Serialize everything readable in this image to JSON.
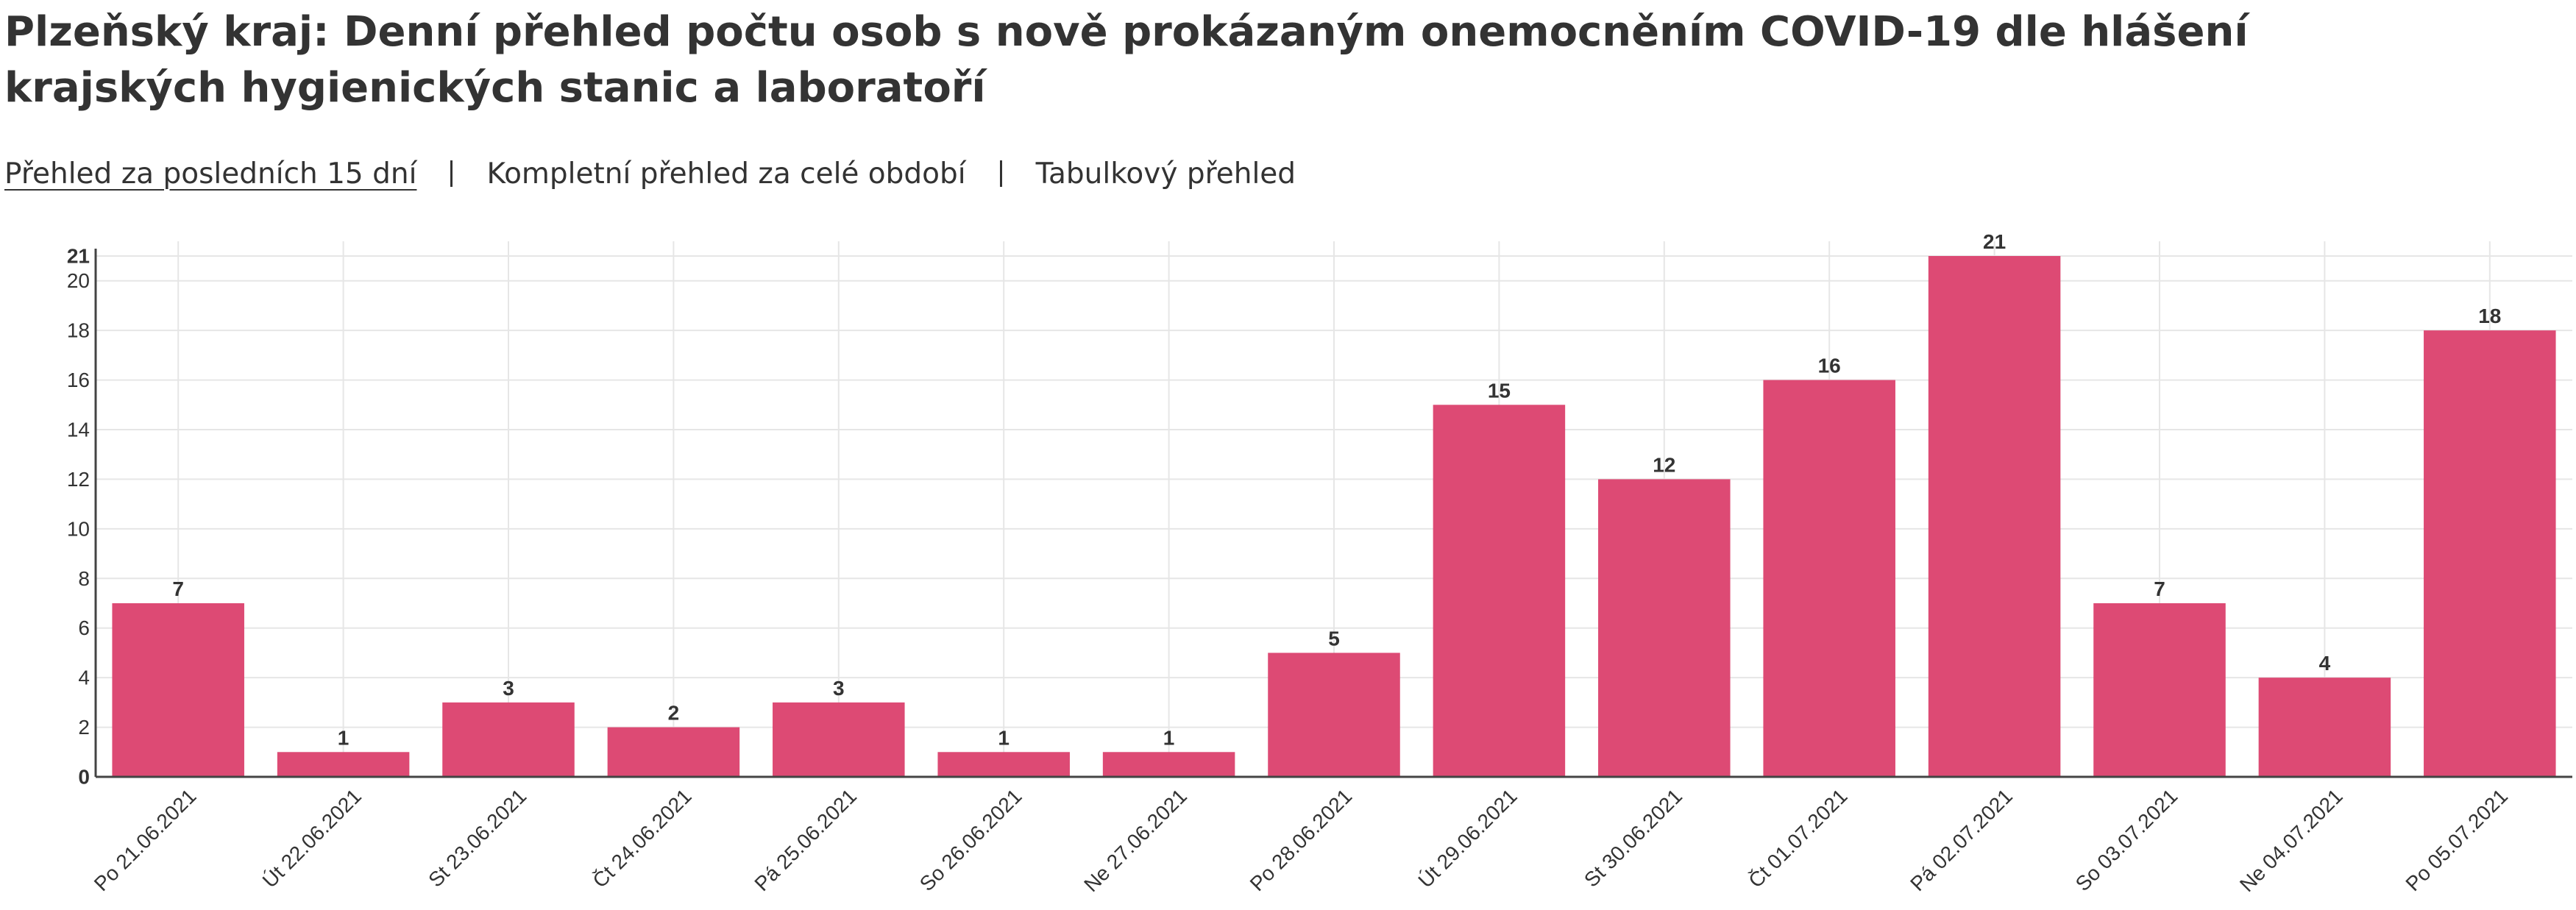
{
  "page": {
    "title": "Plzeňský kraj: Denní přehled počtu osob s nově prokázaným onemocněním COVID-19 dle hlášení krajských hygienických stanic a laboratoří"
  },
  "nav": {
    "items": [
      {
        "label": "Přehled za posledních 15 dní",
        "active": true
      },
      {
        "label": "Kompletní přehled za celé období",
        "active": false
      },
      {
        "label": "Tabulkový přehled",
        "active": false
      }
    ]
  },
  "chart_data": {
    "type": "bar",
    "title": "",
    "xlabel": "",
    "ylabel": "",
    "categories": [
      "Po 21.06.2021",
      "Út 22.06.2021",
      "St 23.06.2021",
      "Čt 24.06.2021",
      "Pá 25.06.2021",
      "So 26.06.2021",
      "Ne 27.06.2021",
      "Po 28.06.2021",
      "Út 29.06.2021",
      "St 30.06.2021",
      "Čt 01.07.2021",
      "Pá 02.07.2021",
      "So 03.07.2021",
      "Ne 04.07.2021",
      "Po 05.07.2021"
    ],
    "values": [
      7,
      1,
      3,
      2,
      3,
      1,
      1,
      5,
      15,
      12,
      16,
      21,
      7,
      4,
      18
    ],
    "ylim": [
      0,
      21
    ],
    "yticks": [
      0,
      2,
      4,
      6,
      8,
      10,
      12,
      14,
      16,
      18,
      20,
      21
    ],
    "yticks_bold": [
      0,
      21
    ],
    "grid": true,
    "show_data_labels": true,
    "colors": {
      "bar": "#dd4a74",
      "grid": "#e6e6e6",
      "axis": "#444444",
      "text": "#333333"
    }
  }
}
